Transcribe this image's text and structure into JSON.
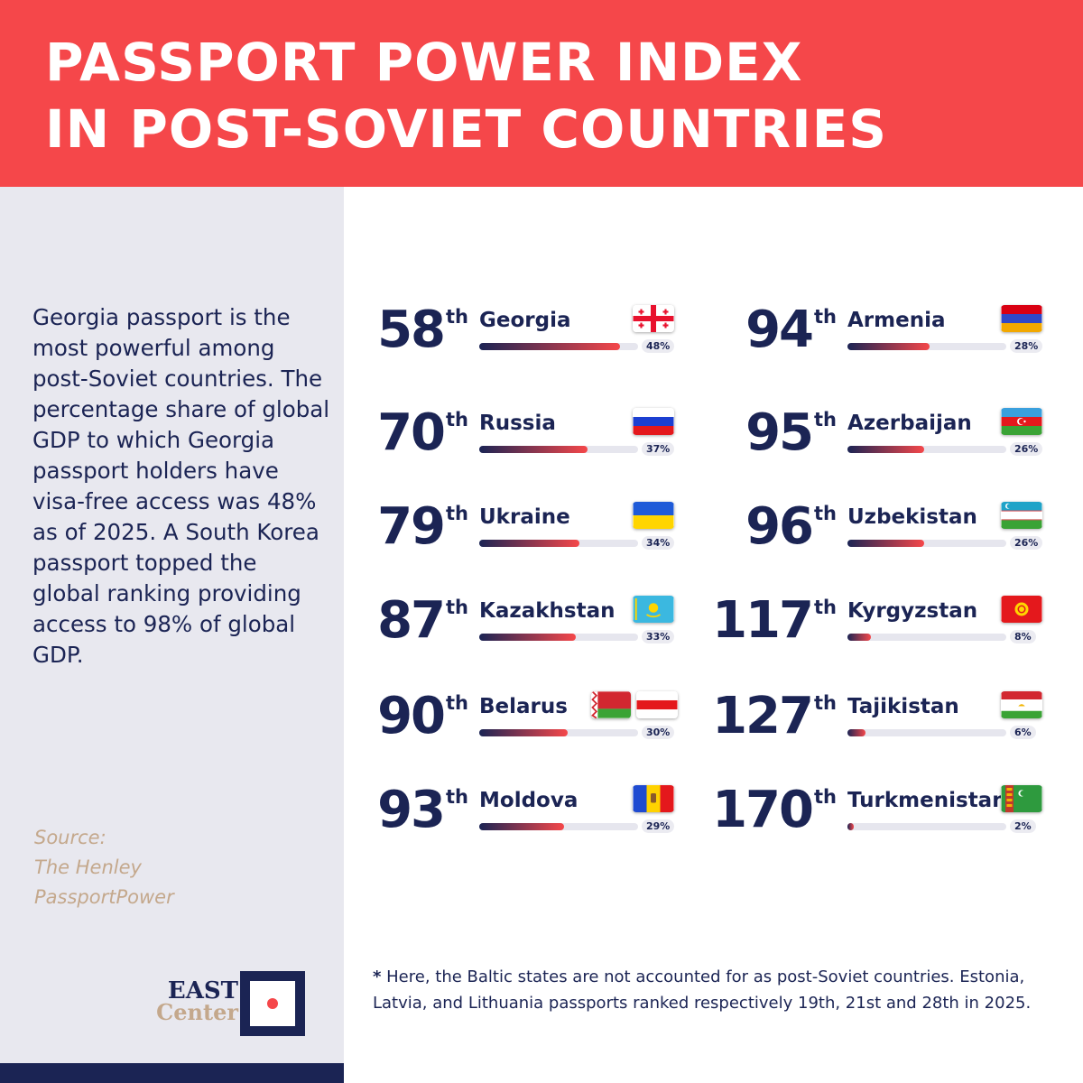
{
  "header": {
    "title_line1": "PASSPORT POWER INDEX",
    "title_line2": "IN POST-SOVIET COUNTRIES"
  },
  "sidebar": {
    "description": "Georgia passport is the most powerful among post-Soviet countries. The percentage share of global GDP to which Georgia passport holders have visa-free access was 48% as of 2025. A South Korea passport topped the global ranking providing access to 98% of global GDP.",
    "source_label": "Source:",
    "source_line1": "The Henley",
    "source_line2": "PassportPower",
    "logo_line1": "EAST",
    "logo_line2": "Center"
  },
  "footnote": {
    "star": "*",
    "text": " Here, the Baltic states are not accounted for as post-Soviet countries. Estonia, Latvia, and Lithuania passports ranked respectively 19th, 21st and 28th in 2025."
  },
  "chart_data": {
    "type": "bar",
    "value_unit": "%",
    "items": [
      {
        "country": "Georgia",
        "rank": 58,
        "rank_suffix": "th",
        "value": 48,
        "label": "48%",
        "flag": "georgia-flag"
      },
      {
        "country": "Russia",
        "rank": 70,
        "rank_suffix": "th",
        "value": 37,
        "label": "37%",
        "flag": "russia-flag"
      },
      {
        "country": "Ukraine",
        "rank": 79,
        "rank_suffix": "th",
        "value": 34,
        "label": "34%",
        "flag": "ukraine-flag"
      },
      {
        "country": "Kazakhstan",
        "rank": 87,
        "rank_suffix": "th",
        "value": 33,
        "label": "33%",
        "flag": "kazakhstan-flag"
      },
      {
        "country": "Belarus",
        "rank": 90,
        "rank_suffix": "th",
        "value": 30,
        "label": "30%",
        "flag": "belarus-flag"
      },
      {
        "country": "Moldova",
        "rank": 93,
        "rank_suffix": "th",
        "value": 29,
        "label": "29%",
        "flag": "moldova-flag"
      },
      {
        "country": "Armenia",
        "rank": 94,
        "rank_suffix": "th",
        "value": 28,
        "label": "28%",
        "flag": "armenia-flag"
      },
      {
        "country": "Azerbaijan",
        "rank": 95,
        "rank_suffix": "th",
        "value": 26,
        "label": "26%",
        "flag": "azerbaijan-flag"
      },
      {
        "country": "Uzbekistan",
        "rank": 96,
        "rank_suffix": "th",
        "value": 26,
        "label": "26%",
        "flag": "uzbekistan-flag"
      },
      {
        "country": "Kyrgyzstan",
        "rank": 117,
        "rank_suffix": "th",
        "value": 8,
        "label": "8%",
        "flag": "kyrgyzstan-flag"
      },
      {
        "country": "Tajikistan",
        "rank": 127,
        "rank_suffix": "th",
        "value": 6,
        "label": "6%",
        "flag": "tajikistan-flag"
      },
      {
        "country": "Turkmenistan",
        "rank": 170,
        "rank_suffix": "th",
        "value": 2,
        "label": "2%",
        "flag": "turkmenistan-flag"
      }
    ],
    "ylim": [
      0,
      100
    ]
  },
  "colors": {
    "accent_red": "#f5474a",
    "navy": "#1b2454",
    "sidebar_bg": "#e8e8ef",
    "source_tan": "#c4a88c"
  }
}
